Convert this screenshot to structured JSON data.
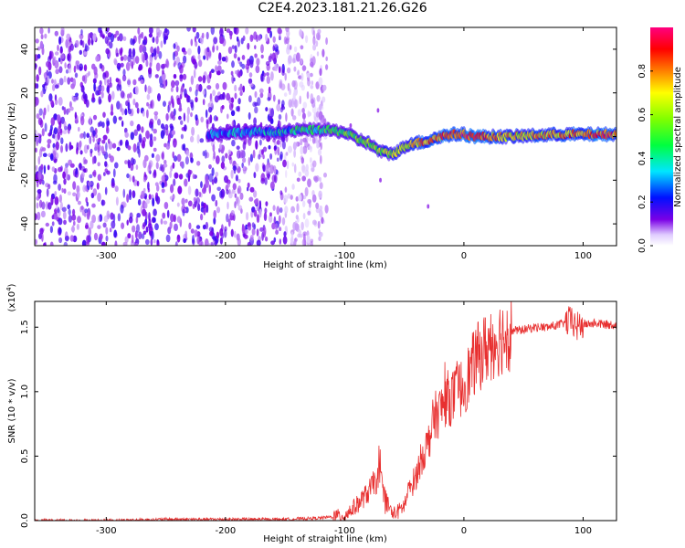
{
  "title": "C2E4.2023.181.21.26.G26",
  "chart_data": [
    {
      "type": "heatmap",
      "title": "C2E4.2023.181.21.26.G26",
      "xlabel": "Height of straight line (km)",
      "ylabel": "Frequency (Hz)",
      "xlim": [
        -360,
        128
      ],
      "ylim": [
        -50,
        50
      ],
      "xticks": [
        -300,
        -200,
        -100,
        0,
        100
      ],
      "xtick_labels": [
        "-300",
        "-200",
        "-100",
        "0",
        "100"
      ],
      "yticks": [
        -40,
        -20,
        0,
        20,
        40
      ],
      "ytick_labels": [
        "-40",
        "-20",
        "0",
        "20",
        "40"
      ],
      "colorbar": {
        "label": "Normalized spectral amplitude",
        "range": [
          0,
          1
        ],
        "ticks": [
          0.0,
          0.2,
          0.4,
          0.6,
          0.8
        ],
        "tick_labels": [
          "0.0",
          "0.2",
          "0.4",
          "0.6",
          "0.8"
        ]
      },
      "ridge": {
        "x": [
          -215,
          -190,
          -160,
          -135,
          -115,
          -100,
          -90,
          -80,
          -70,
          -60,
          -50,
          -45,
          -40,
          -30,
          -20,
          -10,
          0,
          10,
          40,
          80,
          120,
          128
        ],
        "freq": [
          1,
          2,
          2,
          3,
          3,
          2,
          -1,
          -3,
          -7,
          -8,
          -5,
          -3,
          -3,
          -2,
          0,
          1,
          1,
          0,
          0,
          1,
          1,
          1
        ],
        "amplitude": [
          0.25,
          0.3,
          0.3,
          0.4,
          0.5,
          0.5,
          0.5,
          0.55,
          0.6,
          0.6,
          0.6,
          0.7,
          0.75,
          0.8,
          0.85,
          0.85,
          0.9,
          0.85,
          0.7,
          0.75,
          0.85,
          0.8
        ]
      },
      "noise_region": [
        -360,
        -115
      ]
    },
    {
      "type": "line",
      "xlabel": "Height of straight line (km)",
      "ylabel": "SNR (10 * v/v)",
      "yscale_label": "(x10",
      "yscale_exp": "4",
      "yscale_close": ")",
      "xlim": [
        -360,
        128
      ],
      "ylim": [
        0,
        1.7
      ],
      "xticks": [
        -300,
        -200,
        -100,
        0,
        100
      ],
      "xtick_labels": [
        "-300",
        "-200",
        "-100",
        "0",
        "100"
      ],
      "yticks": [
        0.0,
        0.5,
        1.0,
        1.5
      ],
      "ytick_labels": [
        "0.0",
        "0.5",
        "1.0",
        "1.5"
      ],
      "series": [
        {
          "name": "SNR",
          "color": "#e83030",
          "x": [
            -360,
            -300,
            -250,
            -200,
            -150,
            -120,
            -100,
            -90,
            -80,
            -75,
            -70,
            -65,
            -60,
            -55,
            -50,
            -45,
            -40,
            -35,
            -30,
            -25,
            -20,
            -15,
            -10,
            -5,
            0,
            10,
            20,
            30,
            40,
            50,
            60,
            70,
            80,
            90,
            95,
            100,
            110,
            120,
            128
          ],
          "y": [
            0.0,
            0.0,
            0.01,
            0.01,
            0.01,
            0.02,
            0.04,
            0.12,
            0.22,
            0.3,
            0.32,
            0.15,
            0.05,
            0.07,
            0.12,
            0.25,
            0.35,
            0.5,
            0.6,
            0.8,
            0.85,
            0.95,
            0.95,
            1.0,
            1.05,
            1.25,
            1.35,
            1.42,
            1.47,
            1.48,
            1.5,
            1.5,
            1.52,
            1.55,
            1.5,
            1.52,
            1.53,
            1.52,
            1.52
          ]
        }
      ]
    }
  ]
}
